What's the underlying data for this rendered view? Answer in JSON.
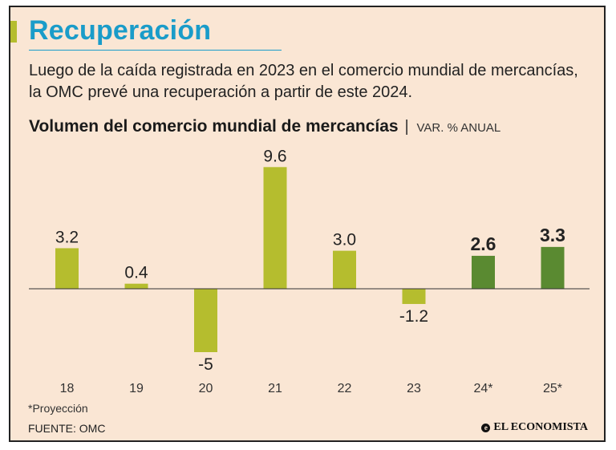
{
  "header": {
    "title": "Recuperación",
    "subtitle": "Luego de la caída registrada en 2023 en el comercio mundial de mercancías, la OMC prevé una recuperación a partir de este 2024."
  },
  "chart_data": {
    "type": "bar",
    "title": "Volumen del comercio mundial de mercancías",
    "separator": "|",
    "unit_label": "VAR. % ANUAL",
    "categories": [
      "18",
      "19",
      "20",
      "21",
      "22",
      "23",
      "24*",
      "25*"
    ],
    "values": [
      3.2,
      0.4,
      -5,
      9.6,
      3.0,
      -1.2,
      2.6,
      3.3
    ],
    "value_labels": [
      "3.2",
      "0.4",
      "-5",
      "9.6",
      "3.0",
      "-1.2",
      "2.6",
      "3.3"
    ],
    "projection": [
      false,
      false,
      false,
      false,
      false,
      false,
      true,
      true
    ],
    "ylim": [
      -5,
      9.6
    ],
    "colors": {
      "actual": "#b5bd2e",
      "projection": "#5a8a31",
      "axis": "#333333"
    }
  },
  "footer": {
    "footnote": "*Proyección",
    "source": "FUENTE: OMC",
    "brand": "EL ECONOMISTA",
    "brand_icon": "newspaper-logo-icon"
  }
}
